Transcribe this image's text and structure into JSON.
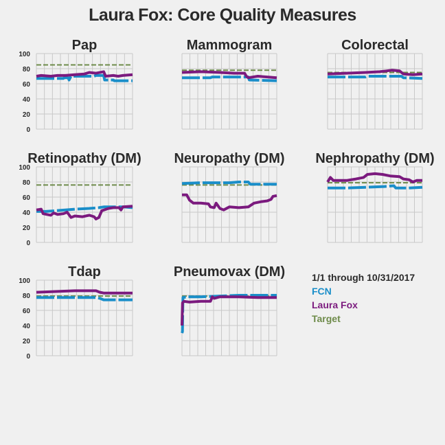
{
  "page": {
    "title": "Laura Fox: Core Quality Measures"
  },
  "legend": {
    "date_range": "1/1 through 10/31/2017",
    "fcn": "FCN",
    "laura": "Laura Fox",
    "target": "Target"
  },
  "colors": {
    "fcn": "#1a8ec9",
    "laura": "#7b1a7e",
    "target": "#6e8b4a",
    "grid": "#c8c8c8"
  },
  "chart_data": [
    {
      "type": "line",
      "title": "Pap",
      "ylim": [
        0,
        100
      ],
      "yticks": [
        "0",
        "20",
        "40",
        "60",
        "80",
        "100"
      ],
      "x_domain": [
        0,
        100
      ],
      "series": [
        {
          "name": "FCN",
          "points": [
            [
              0,
              67
            ],
            [
              28,
              67
            ],
            [
              29,
              68
            ],
            [
              33,
              68
            ],
            [
              34,
              65
            ],
            [
              36,
              70
            ],
            [
              60,
              70
            ],
            [
              62,
              71
            ],
            [
              70,
              71
            ],
            [
              71,
              65
            ],
            [
              80,
              65
            ],
            [
              81,
              64
            ],
            [
              100,
              64
            ]
          ]
        },
        {
          "name": "Laura Fox",
          "points": [
            [
              0,
              70
            ],
            [
              5,
              71
            ],
            [
              15,
              70
            ],
            [
              22,
              71
            ],
            [
              30,
              71
            ],
            [
              40,
              72
            ],
            [
              50,
              73
            ],
            [
              55,
              75
            ],
            [
              62,
              74
            ],
            [
              70,
              76
            ],
            [
              72,
              70
            ],
            [
              80,
              71
            ],
            [
              85,
              70
            ],
            [
              90,
              71
            ],
            [
              100,
              72
            ]
          ]
        },
        {
          "name": "Target",
          "points": [
            [
              0,
              85
            ],
            [
              100,
              85
            ]
          ]
        }
      ]
    },
    {
      "type": "line",
      "title": "Mammogram",
      "ylim": [
        0,
        100
      ],
      "yticks": [
        "0",
        "20",
        "40",
        "60",
        "80",
        "100"
      ],
      "x_domain": [
        0,
        100
      ],
      "series": [
        {
          "name": "FCN",
          "points": [
            [
              0,
              68
            ],
            [
              30,
              68
            ],
            [
              32,
              69
            ],
            [
              70,
              69
            ],
            [
              71,
              65
            ],
            [
              100,
              64
            ]
          ]
        },
        {
          "name": "Laura Fox",
          "points": [
            [
              0,
              75
            ],
            [
              20,
              76
            ],
            [
              40,
              75
            ],
            [
              55,
              74
            ],
            [
              66,
              74
            ],
            [
              68,
              70
            ],
            [
              70,
              68
            ],
            [
              80,
              70
            ],
            [
              90,
              69
            ],
            [
              100,
              68
            ]
          ]
        },
        {
          "name": "Target",
          "points": [
            [
              0,
              78
            ],
            [
              100,
              78
            ]
          ]
        }
      ]
    },
    {
      "type": "line",
      "title": "Colorectal",
      "ylim": [
        0,
        100
      ],
      "yticks": [
        "0",
        "20",
        "40",
        "60",
        "80",
        "100"
      ],
      "x_domain": [
        0,
        100
      ],
      "series": [
        {
          "name": "FCN",
          "points": [
            [
              0,
              69
            ],
            [
              40,
              69
            ],
            [
              42,
              70
            ],
            [
              78,
              70
            ],
            [
              80,
              68
            ],
            [
              100,
              67
            ]
          ]
        },
        {
          "name": "Laura Fox",
          "points": [
            [
              0,
              73
            ],
            [
              20,
              74
            ],
            [
              40,
              75
            ],
            [
              55,
              76
            ],
            [
              62,
              77
            ],
            [
              68,
              78
            ],
            [
              76,
              77
            ],
            [
              80,
              73
            ],
            [
              90,
              72
            ],
            [
              100,
              73
            ]
          ]
        },
        {
          "name": "Target",
          "points": [
            [
              0,
              75
            ],
            [
              100,
              75
            ]
          ]
        }
      ]
    },
    {
      "type": "line",
      "title": "Retinopathy (DM)",
      "ylim": [
        0,
        100
      ],
      "yticks": [
        "0",
        "20",
        "40",
        "60",
        "80",
        "100"
      ],
      "x_domain": [
        0,
        100
      ],
      "series": [
        {
          "name": "FCN",
          "points": [
            [
              0,
              41
            ],
            [
              10,
              41
            ],
            [
              20,
              42
            ],
            [
              30,
              43
            ],
            [
              40,
              44
            ],
            [
              55,
              45
            ],
            [
              65,
              46
            ],
            [
              70,
              47
            ],
            [
              80,
              47
            ],
            [
              90,
              47
            ],
            [
              100,
              46
            ]
          ]
        },
        {
          "name": "Laura Fox",
          "points": [
            [
              0,
              43
            ],
            [
              5,
              44
            ],
            [
              7,
              38
            ],
            [
              15,
              36
            ],
            [
              18,
              39
            ],
            [
              22,
              37
            ],
            [
              28,
              38
            ],
            [
              32,
              40
            ],
            [
              36,
              33
            ],
            [
              40,
              35
            ],
            [
              48,
              34
            ],
            [
              55,
              36
            ],
            [
              60,
              34
            ],
            [
              62,
              31
            ],
            [
              65,
              33
            ],
            [
              68,
              42
            ],
            [
              75,
              45
            ],
            [
              80,
              46
            ],
            [
              86,
              46
            ],
            [
              88,
              43
            ],
            [
              90,
              47
            ],
            [
              100,
              48
            ]
          ]
        },
        {
          "name": "Target",
          "points": [
            [
              0,
              76
            ],
            [
              100,
              76
            ]
          ]
        }
      ]
    },
    {
      "type": "line",
      "title": "Neuropathy (DM)",
      "ylim": [
        0,
        100
      ],
      "yticks": [
        "0",
        "20",
        "40",
        "60",
        "80",
        "100"
      ],
      "x_domain": [
        0,
        100
      ],
      "series": [
        {
          "name": "FCN",
          "points": [
            [
              0,
              78
            ],
            [
              20,
              79
            ],
            [
              50,
              79
            ],
            [
              60,
              80
            ],
            [
              70,
              80
            ],
            [
              72,
              77
            ],
            [
              100,
              77
            ]
          ]
        },
        {
          "name": "Laura Fox",
          "points": [
            [
              0,
              63
            ],
            [
              5,
              63
            ],
            [
              8,
              56
            ],
            [
              12,
              52
            ],
            [
              20,
              52
            ],
            [
              28,
              51
            ],
            [
              30,
              47
            ],
            [
              34,
              46
            ],
            [
              36,
              52
            ],
            [
              40,
              45
            ],
            [
              44,
              43
            ],
            [
              50,
              47
            ],
            [
              60,
              46
            ],
            [
              70,
              47
            ],
            [
              76,
              52
            ],
            [
              84,
              54
            ],
            [
              90,
              55
            ],
            [
              94,
              57
            ],
            [
              96,
              61
            ],
            [
              100,
              62
            ]
          ]
        },
        {
          "name": "Target",
          "points": [
            [
              0,
              76
            ],
            [
              100,
              76
            ]
          ]
        }
      ]
    },
    {
      "type": "line",
      "title": "Nephropathy (DM)",
      "ylim": [
        0,
        100
      ],
      "yticks": [
        "0",
        "20",
        "40",
        "60",
        "80",
        "100"
      ],
      "x_domain": [
        0,
        100
      ],
      "series": [
        {
          "name": "FCN",
          "points": [
            [
              0,
              72
            ],
            [
              20,
              72
            ],
            [
              40,
              73
            ],
            [
              60,
              74
            ],
            [
              70,
              75
            ],
            [
              72,
              72
            ],
            [
              85,
              72
            ],
            [
              100,
              73
            ]
          ]
        },
        {
          "name": "Laura Fox",
          "points": [
            [
              0,
              80
            ],
            [
              3,
              86
            ],
            [
              6,
              82
            ],
            [
              20,
              82
            ],
            [
              30,
              84
            ],
            [
              38,
              86
            ],
            [
              42,
              90
            ],
            [
              50,
              91
            ],
            [
              58,
              90
            ],
            [
              66,
              88
            ],
            [
              76,
              87
            ],
            [
              80,
              84
            ],
            [
              86,
              83
            ],
            [
              90,
              80
            ],
            [
              94,
              82
            ],
            [
              100,
              82
            ]
          ]
        },
        {
          "name": "Target",
          "points": [
            [
              0,
              79
            ],
            [
              100,
              79
            ]
          ]
        }
      ]
    },
    {
      "type": "line",
      "title": "Tdap",
      "ylim": [
        0,
        100
      ],
      "yticks": [
        "0",
        "20",
        "40",
        "60",
        "80",
        "100"
      ],
      "x_domain": [
        0,
        100
      ],
      "series": [
        {
          "name": "FCN",
          "points": [
            [
              0,
              77
            ],
            [
              40,
              77
            ],
            [
              62,
              77
            ],
            [
              66,
              76
            ],
            [
              70,
              74
            ],
            [
              85,
              74
            ],
            [
              100,
              74
            ]
          ]
        },
        {
          "name": "Laura Fox",
          "points": [
            [
              0,
              84
            ],
            [
              20,
              85
            ],
            [
              40,
              86
            ],
            [
              50,
              86
            ],
            [
              62,
              86
            ],
            [
              66,
              84
            ],
            [
              70,
              83
            ],
            [
              85,
              83
            ],
            [
              100,
              83
            ]
          ]
        },
        {
          "name": "Target",
          "points": [
            [
              0,
              79
            ],
            [
              100,
              79
            ]
          ]
        }
      ]
    },
    {
      "type": "line",
      "title": "Pneumovax (DM)",
      "ylim": [
        0,
        100
      ],
      "yticks": [
        "0",
        "20",
        "40",
        "60",
        "80",
        "100"
      ],
      "x_domain": [
        0,
        100
      ],
      "series": [
        {
          "name": "FCN",
          "points": [
            [
              0,
              30
            ],
            [
              0.5,
              32
            ],
            [
              1,
              77
            ],
            [
              5,
              78
            ],
            [
              20,
              78
            ],
            [
              40,
              79
            ],
            [
              60,
              80
            ],
            [
              80,
              80
            ],
            [
              100,
              80
            ]
          ]
        },
        {
          "name": "Laura Fox",
          "points": [
            [
              0,
              40
            ],
            [
              0.6,
              70
            ],
            [
              2,
              72
            ],
            [
              8,
              71
            ],
            [
              20,
              72
            ],
            [
              30,
              72
            ],
            [
              32,
              78
            ],
            [
              34,
              76
            ],
            [
              40,
              78
            ],
            [
              60,
              78
            ],
            [
              80,
              77
            ],
            [
              100,
              77
            ]
          ]
        },
        {
          "name": "Target",
          "points": [
            [
              0,
              79
            ],
            [
              100,
              79
            ]
          ]
        }
      ]
    }
  ]
}
